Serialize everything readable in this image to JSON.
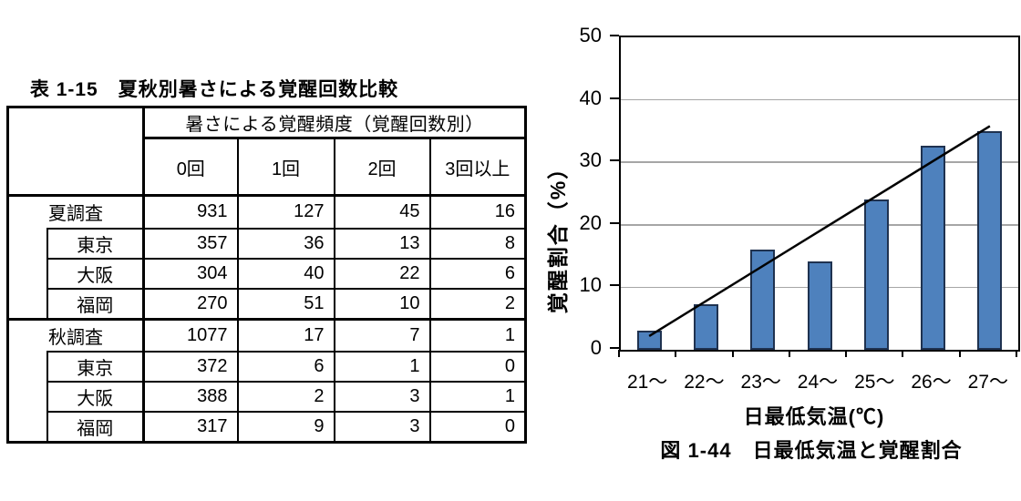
{
  "table_section": {
    "caption": "表 1-15　夏秋別暑さによる覚醒回数比較",
    "header_group": "暑さによる覚醒頻度（覚醒回数別）",
    "column_headers": [
      "0回",
      "1回",
      "2回",
      "3回以上"
    ],
    "rows": [
      {
        "label": "夏調査",
        "type": "group",
        "values": [
          "931",
          "127",
          "45",
          "16"
        ]
      },
      {
        "label": "東京",
        "type": "city",
        "values": [
          "357",
          "36",
          "13",
          "8"
        ]
      },
      {
        "label": "大阪",
        "type": "city",
        "values": [
          "304",
          "40",
          "22",
          "6"
        ]
      },
      {
        "label": "福岡",
        "type": "city",
        "values": [
          "270",
          "51",
          "10",
          "2"
        ]
      },
      {
        "label": "秋調査",
        "type": "group",
        "values": [
          "1077",
          "17",
          "7",
          "1"
        ]
      },
      {
        "label": "東京",
        "type": "city",
        "values": [
          "372",
          "6",
          "1",
          "0"
        ]
      },
      {
        "label": "大阪",
        "type": "city",
        "values": [
          "388",
          "2",
          "3",
          "1"
        ]
      },
      {
        "label": "福岡",
        "type": "city",
        "values": [
          "317",
          "9",
          "3",
          "0"
        ]
      }
    ]
  },
  "chart_data": {
    "type": "bar",
    "categories": [
      "21～",
      "22～",
      "23～",
      "24～",
      "25～",
      "26～",
      "27～"
    ],
    "values": [
      3.1,
      7.3,
      16.0,
      14.2,
      24.0,
      32.7,
      35.0
    ],
    "trendline": {
      "start_value": 2.2,
      "end_value": 35.8
    },
    "ylabel": "覚醒割合（%）",
    "xlabel": "日最低気温(℃)",
    "caption": "図 1-44　日最低気温と覚醒割合",
    "ylim": [
      0,
      50
    ],
    "yticks": [
      0,
      10,
      20,
      30,
      40,
      50
    ],
    "grid": true,
    "legend": false,
    "bar_color": "#4e81bd",
    "bar_border_color": "#1f3250",
    "trend_color": "#000000",
    "grid_color": "#a6a6a6"
  }
}
